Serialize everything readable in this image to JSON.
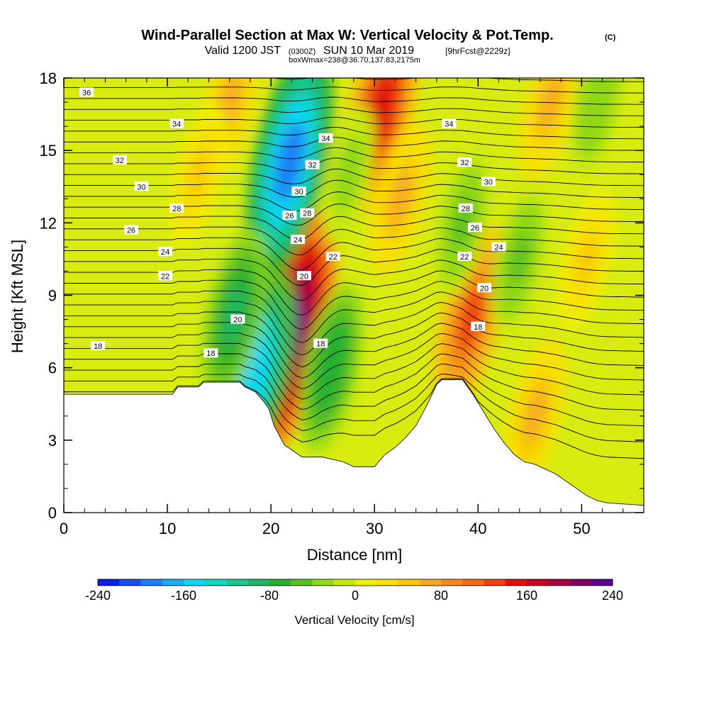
{
  "header": {
    "title": "Wind-Parallel Section at Max W: Vertical Velocity & Pot.Temp.",
    "title_mark": "(C)",
    "valid_prefix": "Valid 1200 JST",
    "valid_utc": "(0300Z)",
    "valid_date": "SUN 10 Mar 2019",
    "forecast": "[9hrFcst@2229z]",
    "box_info": "boxWmax=238@36.70,137.83,2175m"
  },
  "chart_data": {
    "type": "heatmap",
    "xlabel": "Distance [nm]",
    "ylabel": "Height [Kft MSL]",
    "xlim": [
      0,
      56
    ],
    "ylim": [
      0,
      18
    ],
    "x_ticks": [
      0,
      10,
      20,
      30,
      40,
      50
    ],
    "y_ticks": [
      0,
      3,
      6,
      9,
      12,
      15,
      18
    ],
    "grid": false,
    "terrain_profile": [
      [
        0,
        4.9
      ],
      [
        10.5,
        4.9
      ],
      [
        11,
        5.2
      ],
      [
        13,
        5.2
      ],
      [
        13.5,
        5.4
      ],
      [
        17,
        5.4
      ],
      [
        17.5,
        5.2
      ],
      [
        18.5,
        5.0
      ],
      [
        19.3,
        4.6
      ],
      [
        19.8,
        4.3
      ],
      [
        20.3,
        3.6
      ],
      [
        20.8,
        3.2
      ],
      [
        21.3,
        2.8
      ],
      [
        22,
        2.6
      ],
      [
        23,
        2.3
      ],
      [
        25,
        2.3
      ],
      [
        27,
        2.1
      ],
      [
        28,
        1.9
      ],
      [
        30,
        1.9
      ],
      [
        31,
        2.4
      ],
      [
        32,
        2.7
      ],
      [
        33,
        3.1
      ],
      [
        34,
        3.6
      ],
      [
        35,
        4.4
      ],
      [
        36,
        5.3
      ],
      [
        36.5,
        5.5
      ],
      [
        38.5,
        5.5
      ],
      [
        39.5,
        4.9
      ],
      [
        40.5,
        4.2
      ],
      [
        41.5,
        3.5
      ],
      [
        42.5,
        2.9
      ],
      [
        43.5,
        2.4
      ],
      [
        44.5,
        2.1
      ],
      [
        45.5,
        2.0
      ],
      [
        46.5,
        1.8
      ],
      [
        47.5,
        1.6
      ],
      [
        48.5,
        1.3
      ],
      [
        49.5,
        1.0
      ],
      [
        50.5,
        0.7
      ],
      [
        51.5,
        0.5
      ],
      [
        52.5,
        0.4
      ],
      [
        56,
        0.3
      ]
    ],
    "updrafts": [
      {
        "x": 21.5,
        "y": 7.2,
        "w": 238
      },
      {
        "x": 30.5,
        "y": 16.5,
        "w": 150
      },
      {
        "x": 39.3,
        "y": 8.0,
        "w": 120
      },
      {
        "x": 32.5,
        "y": 13.0,
        "w": 60
      },
      {
        "x": 45.5,
        "y": 4.0,
        "w": 60
      },
      {
        "x": 47.0,
        "y": 17.0,
        "w": 60
      },
      {
        "x": 16.0,
        "y": 17.0,
        "w": 60
      },
      {
        "x": 13.0,
        "y": 14.0,
        "w": 40
      },
      {
        "x": 50.5,
        "y": 10.5,
        "w": 40
      }
    ],
    "downdrafts": [
      {
        "x": 21.8,
        "y": 14.5,
        "w": -200
      },
      {
        "x": 18.5,
        "y": 5.8,
        "w": -160
      },
      {
        "x": 16.5,
        "y": 8.2,
        "w": -90
      },
      {
        "x": 25.8,
        "y": 6.0,
        "w": -80
      },
      {
        "x": 38.5,
        "y": 12.0,
        "w": -50
      },
      {
        "x": 44.0,
        "y": 10.5,
        "w": -50
      },
      {
        "x": 51.5,
        "y": 17.0,
        "w": -40
      },
      {
        "x": 27.5,
        "y": 14.0,
        "w": -30
      }
    ],
    "theta_labels": [
      {
        "text": "36",
        "x": 2.2,
        "y": 17.4
      },
      {
        "text": "34",
        "x": 10.9,
        "y": 16.1
      },
      {
        "text": "32",
        "x": 5.4,
        "y": 14.6
      },
      {
        "text": "30",
        "x": 7.5,
        "y": 13.5
      },
      {
        "text": "28",
        "x": 10.9,
        "y": 12.6
      },
      {
        "text": "26",
        "x": 6.5,
        "y": 11.7
      },
      {
        "text": "24",
        "x": 9.8,
        "y": 10.8
      },
      {
        "text": "22",
        "x": 9.8,
        "y": 9.8
      },
      {
        "text": "18",
        "x": 3.3,
        "y": 6.9
      },
      {
        "text": "18",
        "x": 14.2,
        "y": 6.6
      },
      {
        "text": "20",
        "x": 16.8,
        "y": 8.0
      },
      {
        "text": "26",
        "x": 21.8,
        "y": 12.3
      },
      {
        "text": "24",
        "x": 22.6,
        "y": 11.3
      },
      {
        "text": "28",
        "x": 23.5,
        "y": 12.4
      },
      {
        "text": "30",
        "x": 22.7,
        "y": 13.3
      },
      {
        "text": "32",
        "x": 24.0,
        "y": 14.4
      },
      {
        "text": "34",
        "x": 25.3,
        "y": 15.5
      },
      {
        "text": "20",
        "x": 23.2,
        "y": 9.8
      },
      {
        "text": "22",
        "x": 26.0,
        "y": 10.6
      },
      {
        "text": "18",
        "x": 24.8,
        "y": 7.0
      },
      {
        "text": "34",
        "x": 37.2,
        "y": 16.1
      },
      {
        "text": "32",
        "x": 38.7,
        "y": 14.5
      },
      {
        "text": "30",
        "x": 41.0,
        "y": 13.7
      },
      {
        "text": "28",
        "x": 38.8,
        "y": 12.6
      },
      {
        "text": "26",
        "x": 39.7,
        "y": 11.8
      },
      {
        "text": "22",
        "x": 38.7,
        "y": 10.6
      },
      {
        "text": "24",
        "x": 42.0,
        "y": 11.0
      },
      {
        "text": "20",
        "x": 40.6,
        "y": 9.3
      },
      {
        "text": "18",
        "x": 40.0,
        "y": 7.7
      }
    ],
    "colorbar": {
      "label": "Vertical Velocity [cm/s]",
      "min": -240,
      "max": 240,
      "tick_labels": [
        "-240",
        "-160",
        "-80",
        "0",
        "80",
        "160",
        "240"
      ],
      "colors": [
        "#0a1fe8",
        "#1650f0",
        "#1a7ef8",
        "#18aef8",
        "#10d8f0",
        "#10d8c0",
        "#18c890",
        "#20b860",
        "#28b030",
        "#58c020",
        "#90d818",
        "#c8e810",
        "#f0f000",
        "#f8e000",
        "#f8c800",
        "#f8a820",
        "#f88818",
        "#f86810",
        "#f04010",
        "#e01010",
        "#c80020",
        "#a80040",
        "#800060",
        "#5a0090"
      ]
    }
  }
}
